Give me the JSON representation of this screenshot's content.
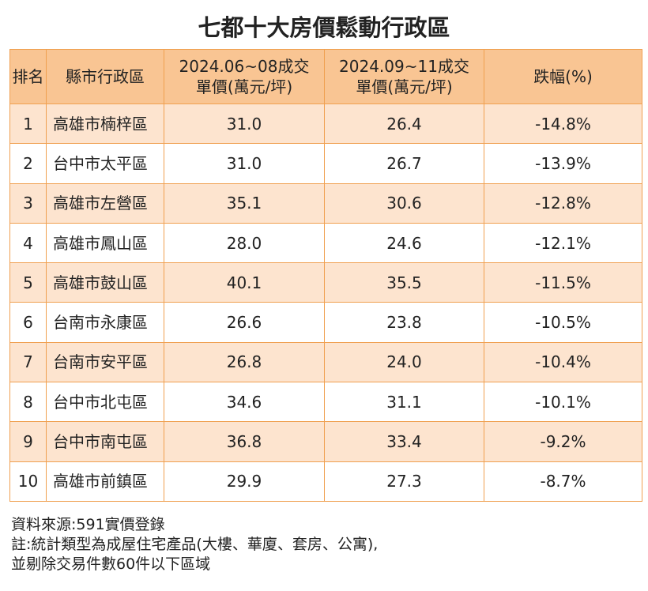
{
  "title": "七都十大房價鬆動行政區",
  "table": {
    "header": [
      "排名",
      "縣市行政區",
      "2024.06~08成交\n單價(萬元/坪)",
      "2024.09~11成交\n單價(萬元/坪)",
      "跌幅(%)"
    ],
    "rows": [
      [
        "1",
        "高雄市楠梓區",
        "31.0",
        "26.4",
        "-14.8%"
      ],
      [
        "2",
        "台中市太平區",
        "31.0",
        "26.7",
        "-13.9%"
      ],
      [
        "3",
        "高雄市左營區",
        "35.1",
        "30.6",
        "-12.8%"
      ],
      [
        "4",
        "高雄市鳳山區",
        "28.0",
        "24.6",
        "-12.1%"
      ],
      [
        "5",
        "高雄市鼓山區",
        "40.1",
        "35.5",
        "-11.5%"
      ],
      [
        "6",
        "台南市永康區",
        "26.6",
        "23.8",
        "-10.5%"
      ],
      [
        "7",
        "台南市安平區",
        "26.8",
        "24.0",
        "-10.4%"
      ],
      [
        "8",
        "台中市北屯區",
        "34.6",
        "31.1",
        "-10.1%"
      ],
      [
        "9",
        "台中市南屯區",
        "36.8",
        "33.4",
        "-9.2%"
      ],
      [
        "10",
        "高雄市前鎮區",
        "29.9",
        "27.3",
        "-8.7%"
      ]
    ]
  },
  "notes": [
    "資料來源:591實價登錄",
    "註:統計類型為成屋住宅產品(大樓、華廈、套房、公寓),",
    "並剔除交易件數60件以下區域"
  ]
}
